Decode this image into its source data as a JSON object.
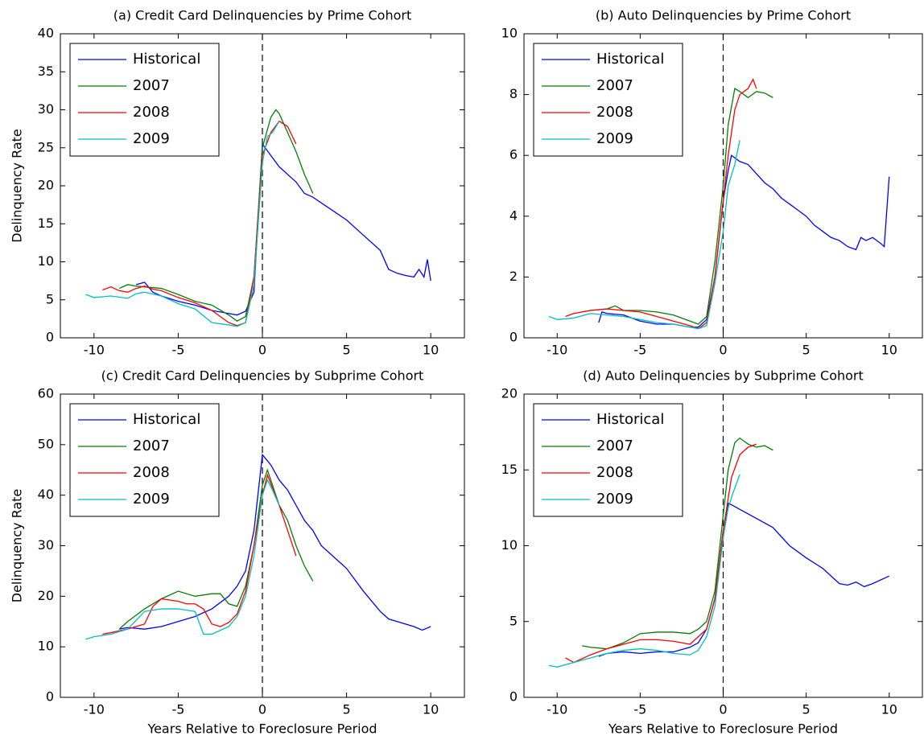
{
  "chart_data": [
    {
      "type": "line",
      "title": "(a) Credit Card Delinquencies by Prime Cohort",
      "ylabel": "Delinquency Rate",
      "xlim": [
        -12,
        12
      ],
      "xticks": [
        -10,
        -5,
        0,
        5,
        10
      ],
      "ylim": [
        0,
        40
      ],
      "yticks": [
        0,
        5,
        10,
        15,
        20,
        25,
        30,
        35,
        40
      ],
      "vline": 0,
      "legend": "upper left",
      "series": [
        {
          "name": "Historical",
          "color": "#0000ff",
          "x": [
            -7.5,
            -7,
            -6.5,
            -6,
            -5,
            -4,
            -3,
            -2,
            -1.5,
            -1,
            -0.5,
            0,
            0.5,
            1,
            1.5,
            2,
            2.5,
            3,
            4,
            5,
            6,
            7,
            7.5,
            8,
            8.5,
            9,
            9.3,
            9.6,
            9.8,
            10
          ],
          "values": [
            7,
            7.3,
            6,
            5.5,
            4.8,
            4.3,
            3.6,
            3.2,
            3,
            3.5,
            6,
            25.5,
            24,
            22.5,
            21.5,
            20.5,
            19,
            18.5,
            17,
            15.5,
            13.5,
            11.5,
            9,
            8.5,
            8.2,
            8,
            9,
            8,
            10.3,
            7.5
          ]
        },
        {
          "name": "2007",
          "color": "#008000",
          "x": [
            -8.5,
            -8,
            -7.5,
            -7,
            -6,
            -5,
            -4,
            -3,
            -2,
            -1.5,
            -1,
            -0.5,
            0,
            0.5,
            0.8,
            1,
            1.5,
            2,
            2.5,
            3
          ],
          "values": [
            6.5,
            7,
            6.8,
            6.7,
            6.5,
            5.7,
            4.8,
            4.3,
            3,
            2.2,
            2.8,
            8,
            25,
            29,
            30,
            29.5,
            27,
            24.5,
            21.5,
            19
          ]
        },
        {
          "name": "2008",
          "color": "#ff0000",
          "x": [
            -9.5,
            -9,
            -8.5,
            -8,
            -7.5,
            -7,
            -6.5,
            -6,
            -5,
            -4,
            -3,
            -2,
            -1.5,
            -1,
            -0.5,
            0,
            0.5,
            1,
            1.5,
            2
          ],
          "values": [
            6.3,
            6.7,
            6.2,
            6,
            6.5,
            6.8,
            6.4,
            6.2,
            5.3,
            4.6,
            3.6,
            2,
            1.6,
            2,
            8,
            24,
            27,
            28.5,
            27.8,
            25.5
          ]
        },
        {
          "name": "2009",
          "color": "#00bfbf",
          "x": [
            -10.5,
            -10,
            -9,
            -8,
            -7.5,
            -7,
            -6,
            -5,
            -4,
            -3,
            -2,
            -1.5,
            -1,
            -0.5,
            0,
            0.3,
            0.6,
            1
          ],
          "values": [
            5.7,
            5.3,
            5.5,
            5.2,
            5.8,
            6,
            5.5,
            4.5,
            3.8,
            2,
            1.7,
            1.5,
            2,
            7,
            23,
            26.5,
            27,
            28.5
          ]
        }
      ]
    },
    {
      "type": "line",
      "title": "(b) Auto Delinquencies by Prime Cohort",
      "xlim": [
        -12,
        12
      ],
      "xticks": [
        -10,
        -5,
        0,
        5,
        10
      ],
      "ylim": [
        0,
        10
      ],
      "yticks": [
        0,
        2,
        4,
        6,
        8,
        10
      ],
      "vline": 0,
      "legend": "upper left",
      "series": [
        {
          "name": "Historical",
          "color": "#0000ff",
          "x": [
            -7.5,
            -7.3,
            -7,
            -6,
            -5,
            -4,
            -3,
            -2,
            -1.5,
            -1,
            -0.5,
            0,
            0.3,
            0.5,
            1,
            1.5,
            2,
            2.5,
            3,
            3.5,
            4,
            4.5,
            5,
            5.5,
            6,
            6.5,
            7,
            7.5,
            8,
            8.3,
            8.6,
            9,
            9.5,
            9.7,
            10
          ],
          "values": [
            0.5,
            0.85,
            0.8,
            0.75,
            0.55,
            0.45,
            0.45,
            0.35,
            0.35,
            0.6,
            2,
            4.5,
            5.5,
            6,
            5.8,
            5.7,
            5.4,
            5.1,
            4.9,
            4.6,
            4.4,
            4.2,
            4,
            3.7,
            3.5,
            3.3,
            3.2,
            3,
            2.9,
            3.3,
            3.2,
            3.3,
            3.1,
            3,
            5.3
          ]
        },
        {
          "name": "2007",
          "color": "#008000",
          "x": [
            -8.5,
            -8,
            -7,
            -6.5,
            -6,
            -5,
            -4,
            -3,
            -2,
            -1.5,
            -1,
            -0.5,
            0,
            0.3,
            0.7,
            1,
            1.5,
            2,
            2.5,
            3
          ],
          "values": [
            0.85,
            0.9,
            0.95,
            1.05,
            0.9,
            0.9,
            0.85,
            0.75,
            0.55,
            0.45,
            0.7,
            2.5,
            5,
            7,
            8.2,
            8.1,
            7.9,
            8.1,
            8.05,
            7.9
          ]
        },
        {
          "name": "2008",
          "color": "#ff0000",
          "x": [
            -9.5,
            -9,
            -8,
            -7,
            -6,
            -5,
            -4,
            -3,
            -2,
            -1.5,
            -1,
            -0.5,
            0,
            0.3,
            0.7,
            1,
            1.5,
            1.8,
            2
          ],
          "values": [
            0.7,
            0.8,
            0.9,
            0.95,
            0.9,
            0.85,
            0.7,
            0.55,
            0.4,
            0.3,
            0.5,
            2,
            4.5,
            6,
            7.5,
            8,
            8.2,
            8.5,
            8.2
          ]
        },
        {
          "name": "2009",
          "color": "#00bfbf",
          "x": [
            -10.5,
            -10,
            -9,
            -8,
            -7,
            -6,
            -5,
            -4,
            -3,
            -2,
            -1.5,
            -1,
            -0.5,
            0,
            0.3,
            0.7,
            1
          ],
          "values": [
            0.7,
            0.6,
            0.65,
            0.8,
            0.75,
            0.7,
            0.6,
            0.5,
            0.45,
            0.35,
            0.3,
            0.4,
            1.8,
            3.5,
            5,
            5.7,
            6.5
          ]
        }
      ]
    },
    {
      "type": "line",
      "title": "(c) Credit Card Delinquencies by Subprime Cohort",
      "ylabel": "Delinquency Rate",
      "xlabel": "Years Relative to Foreclosure Period",
      "xlim": [
        -12,
        12
      ],
      "xticks": [
        -10,
        -5,
        0,
        5,
        10
      ],
      "ylim": [
        0,
        60
      ],
      "yticks": [
        0,
        10,
        20,
        30,
        40,
        50,
        60
      ],
      "vline": 0,
      "legend": "upper left",
      "series": [
        {
          "name": "Historical",
          "color": "#0000ff",
          "x": [
            -8.5,
            -8,
            -7,
            -6,
            -5,
            -4,
            -3,
            -2,
            -1.5,
            -1,
            -0.5,
            0,
            0.5,
            1,
            1.5,
            2,
            2.5,
            3,
            3.5,
            4,
            5,
            6,
            7,
            7.5,
            8,
            9,
            9.5,
            10
          ],
          "values": [
            13.5,
            13.8,
            13.5,
            14,
            15,
            16,
            17.5,
            20,
            22,
            25,
            33,
            48,
            46,
            43,
            41,
            38,
            35,
            33,
            30,
            28.5,
            25.5,
            21,
            17,
            15.5,
            15,
            14,
            13.3,
            14
          ]
        },
        {
          "name": "2007",
          "color": "#008000",
          "x": [
            -8.5,
            -8,
            -7,
            -6,
            -5,
            -4,
            -3,
            -2.5,
            -2,
            -1.5,
            -1,
            -0.5,
            0,
            0.3,
            1,
            1.5,
            2,
            2.5,
            3
          ],
          "values": [
            13.5,
            15,
            17.5,
            19.5,
            21,
            20,
            20.5,
            20.5,
            18.5,
            18,
            22,
            30,
            42,
            45,
            38,
            35,
            30,
            26,
            23
          ]
        },
        {
          "name": "2008",
          "color": "#ff0000",
          "x": [
            -9.5,
            -9,
            -8,
            -7,
            -6.5,
            -6,
            -5,
            -4.5,
            -4,
            -3.5,
            -3,
            -2.5,
            -2,
            -1.5,
            -1,
            -0.5,
            0,
            0.3,
            1,
            1.5,
            2
          ],
          "values": [
            12.5,
            12.8,
            13.5,
            14.5,
            18,
            19.5,
            19,
            18.5,
            18.5,
            17.5,
            14.5,
            14,
            14.8,
            16.5,
            21,
            30,
            40,
            44,
            38,
            33,
            28
          ]
        },
        {
          "name": "2009",
          "color": "#00bfbf",
          "x": [
            -10.5,
            -10,
            -9,
            -8,
            -7,
            -6,
            -5,
            -4,
            -3.5,
            -3,
            -2,
            -1.5,
            -1,
            -0.5,
            0,
            0.3,
            0.6,
            1
          ],
          "values": [
            11.5,
            12,
            12.5,
            13.5,
            17,
            17.5,
            17.5,
            17,
            12.5,
            12.5,
            14,
            16,
            20,
            28,
            40,
            43,
            41,
            38
          ]
        }
      ]
    },
    {
      "type": "line",
      "title": "(d) Auto Delinquencies by Subprime Cohort",
      "xlabel": "Years Relative to Foreclosure Period",
      "xlim": [
        -12,
        12
      ],
      "xticks": [
        -10,
        -5,
        0,
        5,
        10
      ],
      "ylim": [
        0,
        20
      ],
      "yticks": [
        0,
        5,
        10,
        15,
        20
      ],
      "vline": 0,
      "legend": "upper left",
      "series": [
        {
          "name": "Historical",
          "color": "#0000ff",
          "x": [
            -7.5,
            -7,
            -6,
            -5,
            -4,
            -3,
            -2,
            -1.5,
            -1,
            -0.5,
            0,
            0.3,
            0.5,
            1,
            2,
            3,
            4,
            5,
            6,
            7,
            7.5,
            8,
            8.5,
            9,
            10
          ],
          "values": [
            2.7,
            2.9,
            3,
            2.9,
            3,
            3,
            3.3,
            3.6,
            4.5,
            6.5,
            11,
            12.8,
            12.7,
            12.4,
            11.8,
            11.2,
            10,
            9.2,
            8.5,
            7.5,
            7.4,
            7.6,
            7.3,
            7.5,
            8
          ]
        },
        {
          "name": "2007",
          "color": "#008000",
          "x": [
            -8.5,
            -8,
            -7,
            -6,
            -5,
            -4,
            -3,
            -2,
            -1.5,
            -1,
            -0.5,
            0,
            0.3,
            0.7,
            1,
            1.5,
            2,
            2.5,
            3
          ],
          "values": [
            3.4,
            3.3,
            3.2,
            3.6,
            4.2,
            4.3,
            4.3,
            4.2,
            4.5,
            5,
            7,
            12,
            15,
            16.8,
            17.1,
            16.7,
            16.5,
            16.6,
            16.3
          ]
        },
        {
          "name": "2008",
          "color": "#ff0000",
          "x": [
            -9.5,
            -9,
            -8,
            -7,
            -6,
            -5,
            -4,
            -3,
            -2,
            -1.5,
            -1,
            -0.5,
            0,
            0.5,
            1,
            1.5,
            2
          ],
          "values": [
            2.6,
            2.3,
            2.8,
            3.2,
            3.5,
            3.8,
            3.8,
            3.7,
            3.5,
            4,
            4.5,
            6.5,
            11,
            14.5,
            16,
            16.5,
            16.7
          ]
        },
        {
          "name": "2009",
          "color": "#00bfbf",
          "x": [
            -10.5,
            -10,
            -9,
            -8,
            -7,
            -6,
            -5,
            -4,
            -3,
            -2,
            -1.5,
            -1,
            -0.5,
            0,
            0.3,
            0.6,
            1
          ],
          "values": [
            2.1,
            2,
            2.3,
            2.6,
            2.9,
            3.1,
            3.2,
            3.1,
            2.9,
            2.8,
            3.1,
            4,
            6,
            10.5,
            12.5,
            13.5,
            14.7
          ]
        }
      ]
    }
  ]
}
